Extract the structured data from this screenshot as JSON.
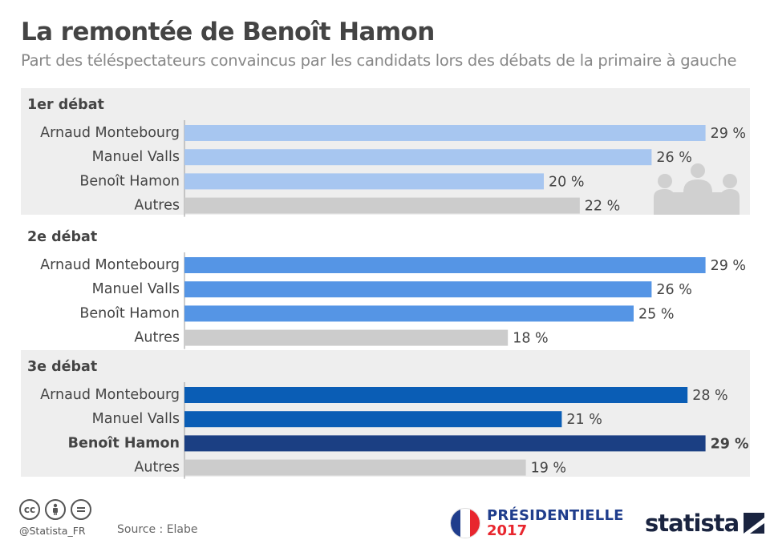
{
  "title": "La remontée de Benoît Hamon",
  "subtitle": "Part des téléspectateurs convaincus par les candidats lors des débats de la primaire à gauche",
  "footer": {
    "handle": "@Statista_FR",
    "source": "Source : Elabe",
    "cc_icons": [
      "creative-commons-icon",
      "attribution-icon",
      "no-derivatives-icon"
    ],
    "pres_line1": "PRÉSIDENTIELLE",
    "pres_line2": "2017",
    "brand": "statista"
  },
  "colors": {
    "panel_bg": "#eeeeee",
    "debate1": "#a7c6f0",
    "debate2": "#5595e5",
    "debate3": "#0a5db5",
    "highlight": "#1b3f83",
    "others": "#cccccc"
  },
  "chart_data": [
    {
      "type": "bar",
      "title": "1er débat",
      "categories": [
        "Arnaud Montebourg",
        "Manuel Valls",
        "Benoît Hamon",
        "Autres"
      ],
      "values": [
        29,
        26,
        20,
        22
      ],
      "labels": [
        "29 %",
        "26 %",
        "20 %",
        "22 %"
      ],
      "unit": "%",
      "bar_color": "#a7c6f0",
      "decoration": "people-meeting-icon"
    },
    {
      "type": "bar",
      "title": "2e débat",
      "categories": [
        "Arnaud Montebourg",
        "Manuel Valls",
        "Benoît Hamon",
        "Autres"
      ],
      "values": [
        29,
        26,
        25,
        18
      ],
      "labels": [
        "29 %",
        "26 %",
        "25 %",
        "18 %"
      ],
      "unit": "%",
      "bar_color": "#5595e5"
    },
    {
      "type": "bar",
      "title": "3e débat",
      "categories": [
        "Arnaud Montebourg",
        "Manuel Valls",
        "Benoît Hamon",
        "Autres"
      ],
      "values": [
        28,
        21,
        29,
        19
      ],
      "labels": [
        "28 %",
        "21 %",
        "29 %",
        "19 %"
      ],
      "unit": "%",
      "bar_color": "#0a5db5",
      "highlight_category": "Benoît Hamon"
    }
  ]
}
